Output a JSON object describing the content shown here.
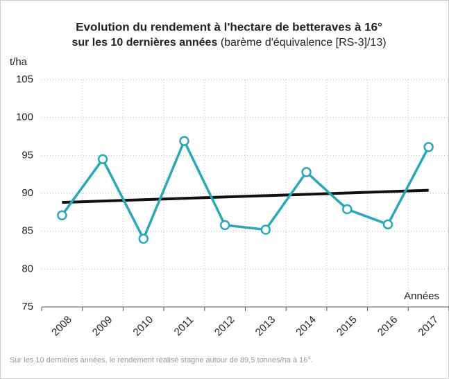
{
  "chart_data": {
    "type": "line",
    "title": "Evolution du rendement à l'hectare de betteraves à 16°",
    "subtitle_bold": "sur les 10 dernières années",
    "subtitle": "(barème d'équivalence [RS-3]/13)",
    "y_label": "t/ha",
    "x_label": "Années",
    "footnote": "Sur les 10 dernières années, le rendement réalisé stagne autour de 89,5 tonnes/ha à 16°.",
    "categories": [
      "2008",
      "2009",
      "2010",
      "2011",
      "2012",
      "2013",
      "2014",
      "2015",
      "2016",
      "2017"
    ],
    "series": [
      {
        "color": "#2aa7b8",
        "values": [
          87.1,
          94.5,
          84.0,
          96.9,
          85.8,
          85.2,
          92.8,
          87.9,
          85.9,
          96.1
        ]
      }
    ],
    "trend": {
      "color": "#111111",
      "values": [
        88.8,
        90.4
      ]
    },
    "ylim": [
      75,
      105
    ],
    "yticks": [
      75,
      80,
      85,
      90,
      95,
      100,
      105
    ],
    "grid": true
  }
}
